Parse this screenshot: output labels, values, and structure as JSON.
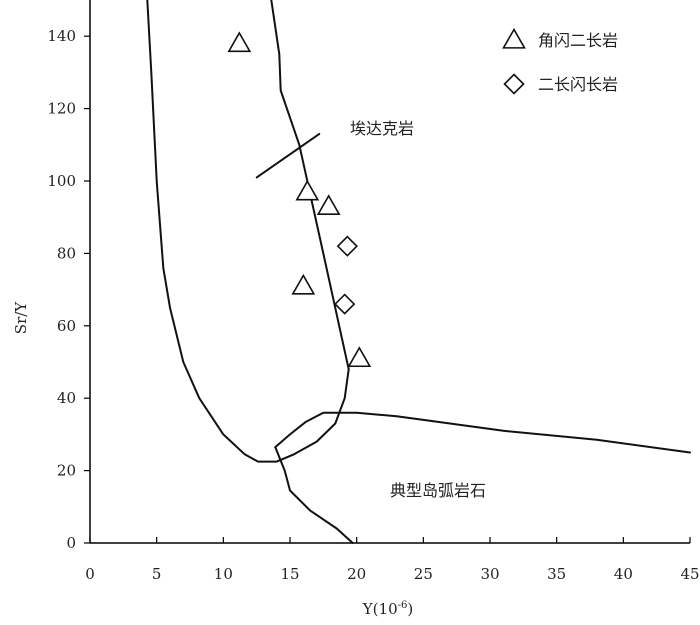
{
  "chart_data": {
    "type": "scatter",
    "xlabel": "Y(10",
    "xlabel_sup": "-6",
    "xlabel_close": ")",
    "ylabel": "Sr/Y",
    "xlim": [
      0,
      45
    ],
    "ylim": [
      0,
      150
    ],
    "x_ticks": [
      0,
      5,
      10,
      15,
      20,
      25,
      30,
      35,
      40,
      45
    ],
    "y_ticks": [
      0,
      20,
      40,
      60,
      80,
      100,
      120,
      140
    ],
    "grid": false,
    "legend_position": "top-right",
    "series": [
      {
        "name": "角闪二长岩",
        "marker": "triangle",
        "points": [
          [
            11.2,
            138
          ],
          [
            16.3,
            97
          ],
          [
            17.9,
            93
          ],
          [
            16.0,
            71
          ],
          [
            20.2,
            51
          ]
        ]
      },
      {
        "name": "二长闪长岩",
        "marker": "diamond",
        "points": [
          [
            19.3,
            82
          ],
          [
            19.1,
            66
          ]
        ]
      }
    ],
    "field_boundaries": [
      {
        "name": "adakite-field-left",
        "points": [
          [
            4.3,
            150
          ],
          [
            4.6,
            130
          ],
          [
            5.0,
            100
          ],
          [
            5.5,
            76
          ],
          [
            6.0,
            65
          ],
          [
            7.0,
            50
          ],
          [
            8.2,
            40
          ],
          [
            10.0,
            30
          ],
          [
            11.6,
            24.5
          ],
          [
            12.6,
            22.5
          ],
          [
            14.0,
            22.5
          ],
          [
            15.3,
            24.5
          ],
          [
            17.0,
            28
          ],
          [
            18.4,
            33
          ],
          [
            19.1,
            40
          ],
          [
            19.4,
            48
          ]
        ]
      },
      {
        "name": "adakite-field-right",
        "points": [
          [
            19.4,
            48
          ],
          [
            17.5,
            80
          ],
          [
            15.7,
            110
          ],
          [
            14.3,
            125
          ],
          [
            14.2,
            135
          ],
          [
            13.6,
            150
          ]
        ]
      },
      {
        "name": "island-arc-field-upper",
        "points": [
          [
            13.9,
            26.5
          ],
          [
            15.0,
            30
          ],
          [
            16.2,
            33.5
          ],
          [
            17.5,
            36
          ],
          [
            20.0,
            36
          ],
          [
            23.0,
            35
          ],
          [
            31.0,
            31
          ],
          [
            38.0,
            28.5
          ],
          [
            45.0,
            25
          ]
        ]
      },
      {
        "name": "island-arc-field-lower",
        "points": [
          [
            13.9,
            26.5
          ],
          [
            14.6,
            20
          ],
          [
            15.0,
            14.5
          ],
          [
            16.5,
            9
          ],
          [
            18.5,
            4
          ],
          [
            19.7,
            0
          ]
        ]
      },
      {
        "name": "adakite-divider-tick",
        "points": [
          [
            12.5,
            101
          ],
          [
            17.2,
            113
          ]
        ]
      }
    ],
    "annotations": [
      {
        "text": "埃达克岩",
        "x": 19.5,
        "y": 113
      },
      {
        "text": "典型岛弧岩石",
        "x": 22.5,
        "y": 13
      }
    ]
  }
}
